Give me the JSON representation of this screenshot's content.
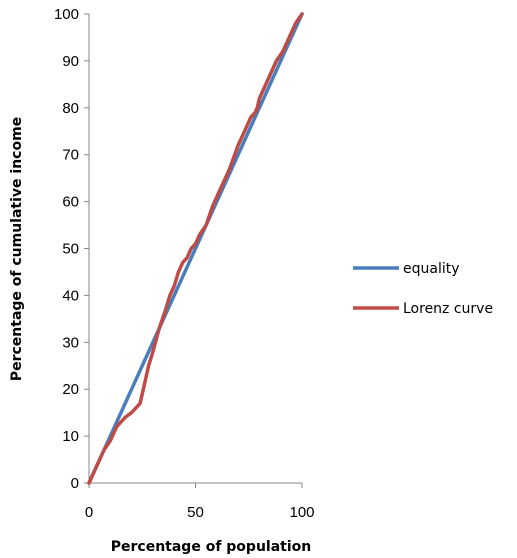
{
  "chart_data": {
    "type": "line",
    "title": "",
    "xlabel": "Percentage of population",
    "ylabel": "Percentage of cumulative income",
    "xlim": [
      0,
      100
    ],
    "ylim": [
      0,
      100
    ],
    "x_ticks": [
      0,
      50,
      100
    ],
    "y_ticks": [
      0,
      10,
      20,
      30,
      40,
      50,
      60,
      70,
      80,
      90,
      100
    ],
    "grid": false,
    "legend": "right",
    "series": [
      {
        "name": "equality",
        "color": "#4a7ebb",
        "x": [
          0,
          100
        ],
        "y": [
          0,
          100
        ]
      },
      {
        "name": "Lorenz curve",
        "color": "#be4b48",
        "x": [
          0,
          3,
          7,
          10,
          13,
          17,
          20,
          22,
          24,
          26,
          28,
          30,
          33,
          36,
          38,
          40,
          42,
          44,
          46,
          48,
          50,
          52,
          55,
          58,
          62,
          66,
          70,
          73,
          76,
          78,
          79,
          80,
          82,
          85,
          88,
          91,
          94,
          97,
          100
        ],
        "y": [
          0,
          3,
          7,
          9,
          12,
          14,
          15,
          16,
          17,
          21,
          25,
          28,
          33,
          37,
          40,
          42,
          45,
          47,
          48,
          50,
          51,
          53,
          55,
          59,
          63,
          67,
          72,
          75,
          78,
          79,
          80,
          82,
          84,
          87,
          90,
          92,
          95,
          98,
          100
        ]
      }
    ]
  }
}
